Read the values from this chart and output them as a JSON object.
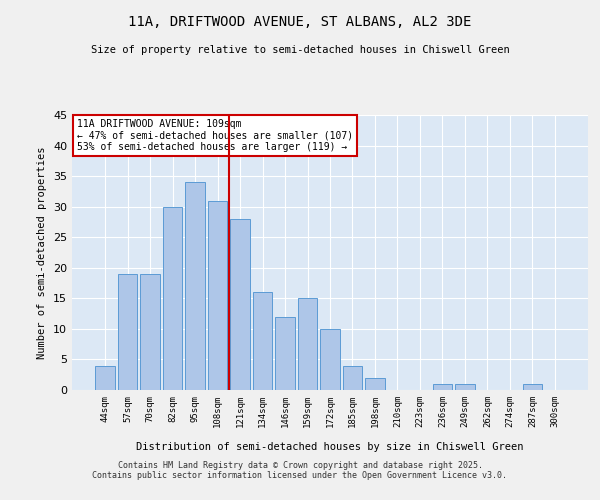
{
  "title": "11A, DRIFTWOOD AVENUE, ST ALBANS, AL2 3DE",
  "subtitle": "Size of property relative to semi-detached houses in Chiswell Green",
  "xlabel": "Distribution of semi-detached houses by size in Chiswell Green",
  "ylabel": "Number of semi-detached properties",
  "bar_labels": [
    "44sqm",
    "57sqm",
    "70sqm",
    "82sqm",
    "95sqm",
    "108sqm",
    "121sqm",
    "134sqm",
    "146sqm",
    "159sqm",
    "172sqm",
    "185sqm",
    "198sqm",
    "210sqm",
    "223sqm",
    "236sqm",
    "249sqm",
    "262sqm",
    "274sqm",
    "287sqm",
    "300sqm"
  ],
  "bar_values": [
    4,
    19,
    19,
    30,
    34,
    31,
    28,
    16,
    12,
    15,
    10,
    4,
    2,
    0,
    0,
    1,
    1,
    0,
    0,
    1,
    0
  ],
  "bar_color": "#aec6e8",
  "bar_edge_color": "#5b9bd5",
  "vline_x": 5.5,
  "vline_color": "#cc0000",
  "annotation_title": "11A DRIFTWOOD AVENUE: 109sqm",
  "annotation_line1": "← 47% of semi-detached houses are smaller (107)",
  "annotation_line2": "53% of semi-detached houses are larger (119) →",
  "annotation_box_color": "#ffffff",
  "annotation_box_edge": "#cc0000",
  "ylim": [
    0,
    45
  ],
  "yticks": [
    0,
    5,
    10,
    15,
    20,
    25,
    30,
    35,
    40,
    45
  ],
  "bg_color": "#dce8f5",
  "fig_bg_color": "#f0f0f0",
  "footnote1": "Contains HM Land Registry data © Crown copyright and database right 2025.",
  "footnote2": "Contains public sector information licensed under the Open Government Licence v3.0."
}
